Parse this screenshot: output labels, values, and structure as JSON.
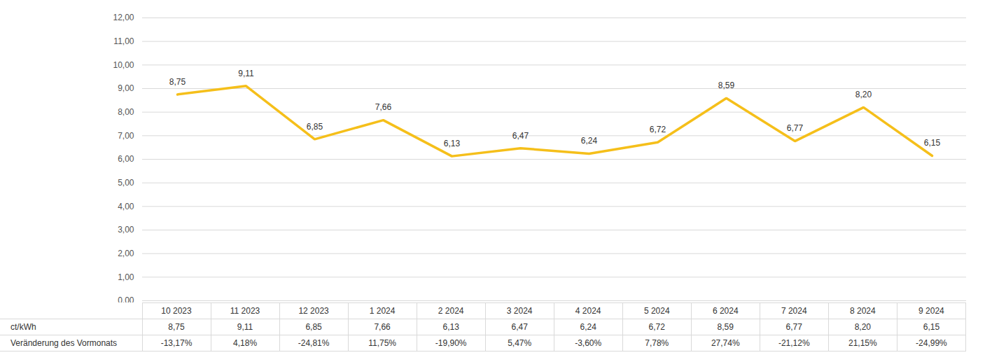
{
  "chart_data": {
    "type": "line",
    "categories": [
      "10 2023",
      "11 2023",
      "12 2023",
      "1 2024",
      "2 2024",
      "3 2024",
      "4 2024",
      "5 2024",
      "6 2024",
      "7 2024",
      "8 2024",
      "9 2024"
    ],
    "series": [
      {
        "name": "ct/kWh",
        "color": "#f5bf1a",
        "values": [
          8.75,
          9.11,
          6.85,
          7.66,
          6.13,
          6.47,
          6.24,
          6.72,
          8.59,
          6.77,
          8.2,
          6.15
        ],
        "value_labels": [
          "8,75",
          "9,11",
          "6,85",
          "7,66",
          "6,13",
          "6,47",
          "6,24",
          "6,72",
          "8,59",
          "6,77",
          "8,20",
          "6,15"
        ]
      }
    ],
    "table_rows": [
      {
        "name": "Veränderung des Vormonats",
        "values": [
          -13.17,
          4.18,
          -24.81,
          11.75,
          -19.9,
          5.47,
          -3.6,
          7.78,
          27.74,
          -21.12,
          21.15,
          -24.99
        ],
        "value_labels": [
          "-13,17%",
          "4,18%",
          "-24,81%",
          "11,75%",
          "-19,90%",
          "5,47%",
          "-3,60%",
          "7,78%",
          "27,74%",
          "-21,12%",
          "21,15%",
          "-24,99%"
        ]
      }
    ],
    "data_labels": true,
    "grid": true,
    "ylim": [
      0,
      12
    ],
    "yticks": [
      {
        "value": 0,
        "label": "0,00"
      },
      {
        "value": 1,
        "label": "1,00"
      },
      {
        "value": 2,
        "label": "2,00"
      },
      {
        "value": 3,
        "label": "3,00"
      },
      {
        "value": 4,
        "label": "4,00"
      },
      {
        "value": 5,
        "label": "5,00"
      },
      {
        "value": 6,
        "label": "6,00"
      },
      {
        "value": 7,
        "label": "7,00"
      },
      {
        "value": 8,
        "label": "8,00"
      },
      {
        "value": 9,
        "label": "9,00"
      },
      {
        "value": 10,
        "label": "10,00"
      },
      {
        "value": 11,
        "label": "11,00"
      },
      {
        "value": 12,
        "label": "12,00"
      }
    ]
  }
}
